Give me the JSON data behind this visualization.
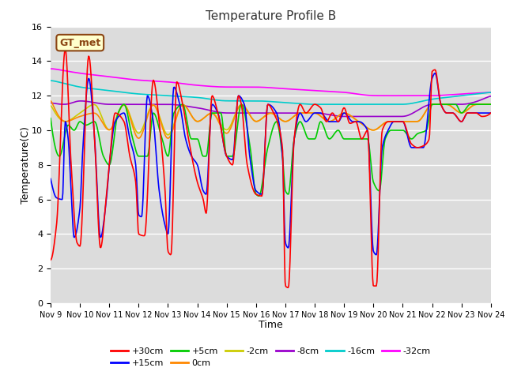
{
  "title": "Temperature Profile B",
  "xlabel": "Time",
  "ylabel": "Temperature(C)",
  "annotation": "GT_met",
  "ylim": [
    0,
    16
  ],
  "series_colors": {
    "+30cm": "#ff0000",
    "+15cm": "#0000ff",
    "+5cm": "#00cc00",
    "0cm": "#ff8800",
    "-2cm": "#cccc00",
    "-8cm": "#9900cc",
    "-16cm": "#00cccc",
    "-32cm": "#ff00ff"
  },
  "x_tick_labels": [
    "Nov 9",
    "Nov 10",
    "Nov 11",
    "Nov 12",
    "Nov 13",
    "Nov 14",
    "Nov 15",
    "Nov 16",
    "Nov 17",
    "Nov 18",
    "Nov 19",
    "Nov 20",
    "Nov 21",
    "Nov 22",
    "Nov 23",
    "Nov 24"
  ],
  "background_color": "#dcdcdc",
  "grid_color": "#ffffff",
  "fig_color": "#ffffff"
}
